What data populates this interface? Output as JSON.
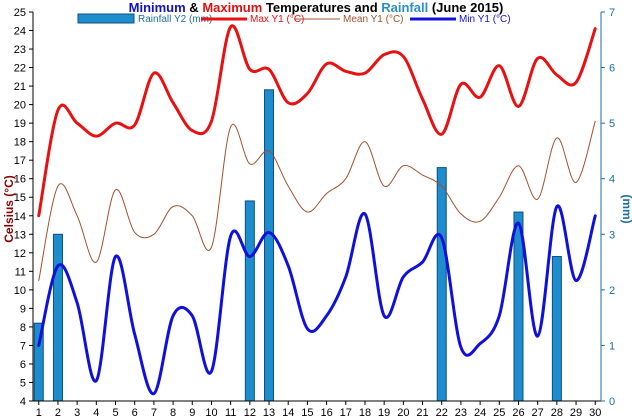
{
  "chart_data": {
    "type": "bar+line",
    "title_parts": [
      {
        "text": "Minimum",
        "color": "#1010c8"
      },
      {
        "text": " & ",
        "color": "#000000"
      },
      {
        "text": "Maximum",
        "color": "#e01010"
      },
      {
        "text": " Temperatures and ",
        "color": "#000000"
      },
      {
        "text": "Rainfall",
        "color": "#2a8fc4"
      },
      {
        "text": " (June 2015)",
        "color": "#000000"
      }
    ],
    "ylabel_left": "Celsius (°C)",
    "ylabel_right": "(mm)",
    "x": [
      1,
      2,
      3,
      4,
      5,
      6,
      7,
      8,
      9,
      10,
      11,
      12,
      13,
      14,
      15,
      16,
      17,
      18,
      19,
      20,
      21,
      22,
      23,
      24,
      25,
      26,
      27,
      28,
      29,
      30
    ],
    "xlim": [
      0.7,
      30.3
    ],
    "ylim_left": [
      4,
      25
    ],
    "ylim_right": [
      0,
      7
    ],
    "yticks_left": [
      4,
      5,
      6,
      7,
      8,
      9,
      10,
      11,
      12,
      13,
      14,
      15,
      16,
      17,
      18,
      19,
      20,
      21,
      22,
      23,
      24,
      25
    ],
    "yticks_right": [
      0,
      1,
      2,
      3,
      4,
      5,
      6,
      7
    ],
    "series": [
      {
        "name": "Rainfall Y2 (mm)",
        "kind": "bar",
        "axis": "right",
        "color": "#1e8ccd",
        "values": [
          1.4,
          3.0,
          0,
          0,
          0,
          0,
          0,
          0,
          0,
          0,
          0,
          3.6,
          5.6,
          0,
          0,
          0,
          0,
          0,
          0,
          0,
          0,
          4.2,
          0,
          0,
          0,
          3.4,
          0,
          2.6,
          0,
          0
        ]
      },
      {
        "name": "Max Y1 (°C)",
        "kind": "line",
        "axis": "left",
        "color": "#e81010",
        "width": 3,
        "values": [
          14.0,
          19.7,
          19.0,
          18.3,
          19.0,
          18.9,
          21.7,
          20.1,
          18.6,
          19.1,
          24.2,
          21.9,
          21.9,
          20.1,
          20.6,
          22.2,
          21.8,
          21.7,
          22.7,
          22.6,
          20.3,
          18.4,
          21.1,
          20.4,
          22.1,
          19.9,
          22.5,
          21.6,
          21.2,
          24.1
        ]
      },
      {
        "name": "Mean Y1 (°C)",
        "kind": "line",
        "axis": "left",
        "color": "#a0522d",
        "width": 1,
        "values": [
          10.5,
          15.6,
          14.0,
          11.5,
          15.4,
          13.1,
          13.0,
          14.5,
          14.0,
          12.3,
          18.8,
          16.8,
          17.5,
          15.6,
          14.2,
          15.2,
          16.0,
          18.0,
          15.6,
          16.7,
          16.2,
          15.6,
          14.1,
          13.7,
          15.0,
          16.7,
          14.9,
          18.2,
          15.8,
          19.1
        ]
      },
      {
        "name": "Min Y1 (°C)",
        "kind": "line",
        "axis": "left",
        "color": "#1010dd",
        "width": 3,
        "values": [
          7.0,
          11.3,
          9.3,
          5.1,
          11.8,
          7.6,
          4.4,
          8.6,
          8.6,
          5.6,
          12.9,
          11.8,
          13.1,
          11.3,
          7.9,
          8.6,
          10.7,
          14.1,
          8.6,
          10.7,
          11.5,
          12.8,
          6.9,
          7.1,
          8.6,
          13.6,
          7.5,
          14.5,
          10.5,
          14.0
        ]
      }
    ],
    "legend_placement": "top",
    "grid": false
  }
}
